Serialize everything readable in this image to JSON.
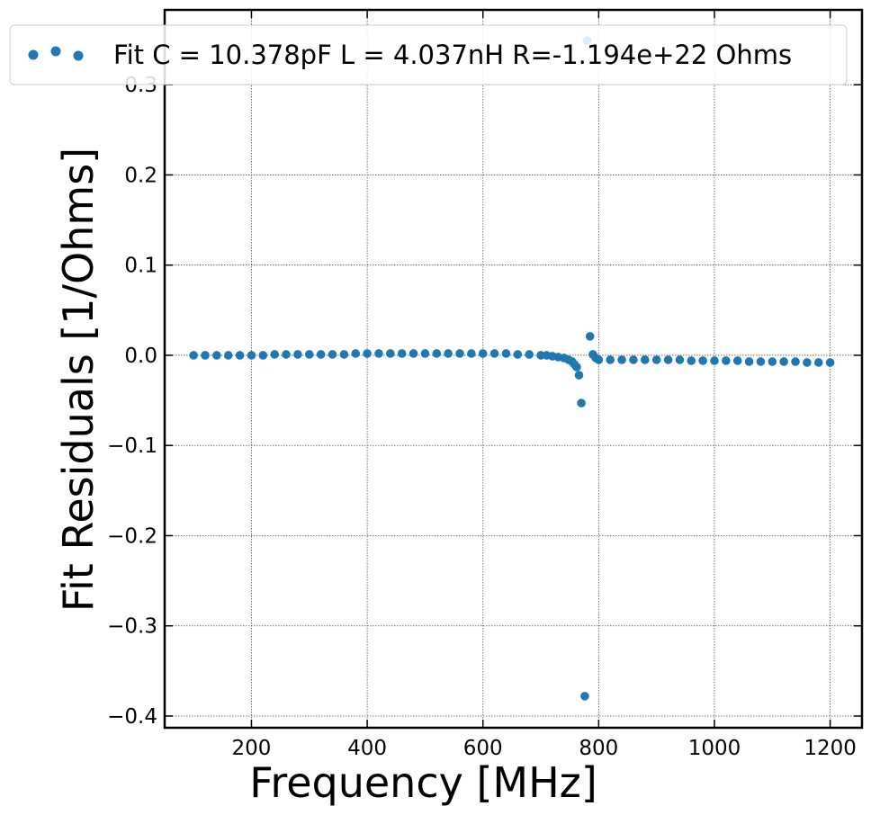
{
  "chart_data": {
    "type": "scatter",
    "title": "",
    "xlabel": "Frequency [MHz]",
    "ylabel": "Fit Residuals [1/Ohms]",
    "xlim": [
      50,
      1255
    ],
    "ylim": [
      -0.413,
      0.383
    ],
    "xticks": [
      200,
      400,
      600,
      800,
      1000,
      1200
    ],
    "xtick_labels": [
      "200",
      "400",
      "600",
      "800",
      "1000",
      "1200"
    ],
    "yticks": [
      -0.4,
      -0.3,
      -0.2,
      -0.1,
      0.0,
      0.1,
      0.2,
      0.3
    ],
    "ytick_labels": [
      "−0.4",
      "−0.3",
      "−0.2",
      "−0.1",
      "0.0",
      "0.1",
      "0.2",
      "0.3"
    ],
    "grid": true,
    "legend": {
      "location": "top",
      "entries": [
        "Fit C = 10.378pF L = 4.037nH R=-1.194e+22 Ohms"
      ]
    },
    "color": "#1f77b4",
    "series": [
      {
        "name": "Fit C = 10.378pF L = 4.037nH R=-1.194e+22 Ohms",
        "points": [
          [
            100,
            0.0
          ],
          [
            120,
            0.0
          ],
          [
            140,
            0.0
          ],
          [
            160,
            0.0
          ],
          [
            180,
            0.0
          ],
          [
            200,
            0.0
          ],
          [
            220,
            0.0
          ],
          [
            240,
            0.001
          ],
          [
            260,
            0.001
          ],
          [
            280,
            0.001
          ],
          [
            300,
            0.001
          ],
          [
            320,
            0.001
          ],
          [
            340,
            0.001
          ],
          [
            360,
            0.001
          ],
          [
            380,
            0.002
          ],
          [
            400,
            0.002
          ],
          [
            420,
            0.002
          ],
          [
            440,
            0.002
          ],
          [
            460,
            0.002
          ],
          [
            480,
            0.002
          ],
          [
            500,
            0.002
          ],
          [
            520,
            0.002
          ],
          [
            540,
            0.002
          ],
          [
            560,
            0.002
          ],
          [
            580,
            0.002
          ],
          [
            600,
            0.002
          ],
          [
            620,
            0.002
          ],
          [
            640,
            0.002
          ],
          [
            660,
            0.001
          ],
          [
            680,
            0.001
          ],
          [
            700,
            0.0
          ],
          [
            710,
            0.0
          ],
          [
            720,
            -0.001
          ],
          [
            730,
            -0.002
          ],
          [
            740,
            -0.003
          ],
          [
            748,
            -0.005
          ],
          [
            754,
            -0.007
          ],
          [
            758,
            -0.01
          ],
          [
            762,
            -0.013
          ],
          [
            766,
            -0.022
          ],
          [
            770,
            -0.053
          ],
          [
            776,
            -0.378
          ],
          [
            780,
            0.349
          ],
          [
            785,
            0.021
          ],
          [
            790,
            0.001
          ],
          [
            795,
            -0.003
          ],
          [
            800,
            -0.005
          ],
          [
            820,
            -0.005
          ],
          [
            840,
            -0.005
          ],
          [
            860,
            -0.005
          ],
          [
            880,
            -0.005
          ],
          [
            900,
            -0.005
          ],
          [
            920,
            -0.005
          ],
          [
            940,
            -0.005
          ],
          [
            960,
            -0.006
          ],
          [
            980,
            -0.006
          ],
          [
            1000,
            -0.006
          ],
          [
            1020,
            -0.006
          ],
          [
            1040,
            -0.006
          ],
          [
            1060,
            -0.007
          ],
          [
            1080,
            -0.007
          ],
          [
            1100,
            -0.007
          ],
          [
            1120,
            -0.007
          ],
          [
            1140,
            -0.007
          ],
          [
            1160,
            -0.008
          ],
          [
            1180,
            -0.008
          ],
          [
            1200,
            -0.008
          ]
        ]
      }
    ]
  }
}
